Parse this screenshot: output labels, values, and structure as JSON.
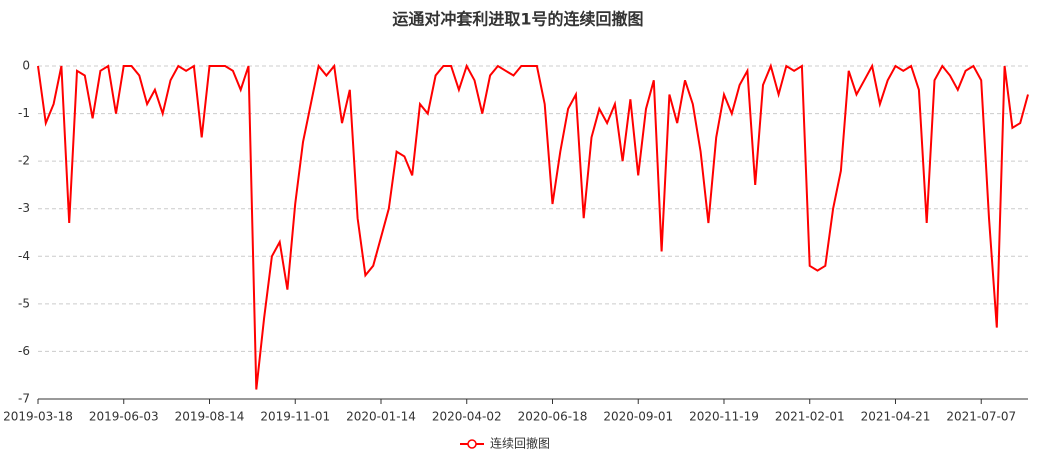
{
  "chart_data": {
    "type": "line",
    "title": "运通对冲套利进取1号的连续回撤图",
    "categories": [
      "2019-03-18",
      null,
      null,
      null,
      null,
      null,
      null,
      null,
      null,
      null,
      null,
      "2019-06-03",
      null,
      null,
      null,
      null,
      null,
      null,
      null,
      null,
      null,
      null,
      "2019-08-14",
      null,
      null,
      null,
      null,
      null,
      null,
      null,
      null,
      null,
      null,
      "2019-11-01",
      null,
      null,
      null,
      null,
      null,
      null,
      null,
      null,
      null,
      null,
      "2020-01-14",
      null,
      null,
      null,
      null,
      null,
      null,
      null,
      null,
      null,
      null,
      "2020-04-02",
      null,
      null,
      null,
      null,
      null,
      null,
      null,
      null,
      null,
      null,
      "2020-06-18",
      null,
      null,
      null,
      null,
      null,
      null,
      null,
      null,
      null,
      null,
      "2020-09-01",
      null,
      null,
      null,
      null,
      null,
      null,
      null,
      null,
      null,
      null,
      "2020-11-19",
      null,
      null,
      null,
      null,
      null,
      null,
      null,
      null,
      null,
      null,
      "2021-02-01",
      null,
      null,
      null,
      null,
      null,
      null,
      null,
      null,
      null,
      null,
      "2021-04-21",
      null,
      null,
      null,
      null,
      null,
      null,
      null,
      null,
      null,
      null,
      "2021-07-07",
      null,
      null,
      null,
      null,
      null,
      null
    ],
    "series": [
      {
        "name": "连续回撤图",
        "color": "#ff0000",
        "values": [
          0,
          -1.2,
          -0.8,
          0,
          -3.3,
          -0.1,
          -0.2,
          -1.1,
          -0.1,
          0,
          -1.0,
          0,
          0,
          -0.2,
          -0.8,
          -0.5,
          -1.0,
          -0.3,
          0,
          -0.1,
          0,
          -1.5,
          0,
          0,
          0,
          -0.1,
          -0.5,
          0,
          -6.8,
          -5.3,
          -4.0,
          -3.7,
          -4.7,
          -2.9,
          -1.6,
          -0.8,
          0,
          -0.2,
          0,
          -1.2,
          -0.5,
          -3.2,
          -4.4,
          -4.2,
          -3.6,
          -3.0,
          -1.8,
          -1.9,
          -2.3,
          -0.8,
          -1.0,
          -0.2,
          0,
          0,
          -0.5,
          0,
          -0.3,
          -1.0,
          -0.2,
          0,
          -0.1,
          -0.2,
          0,
          0,
          0,
          -0.8,
          -2.9,
          -1.8,
          -0.9,
          -0.6,
          -3.2,
          -1.5,
          -0.9,
          -1.2,
          -0.8,
          -2.0,
          -0.7,
          -2.3,
          -0.9,
          -0.3,
          -3.9,
          -0.6,
          -1.2,
          -0.3,
          -0.8,
          -1.8,
          -3.3,
          -1.5,
          -0.6,
          -1.0,
          -0.4,
          -0.1,
          -2.5,
          -0.4,
          0,
          -0.6,
          0,
          -0.1,
          0,
          -4.2,
          -4.3,
          -4.2,
          -3.0,
          -2.2,
          -0.1,
          -0.6,
          -0.3,
          0,
          -0.8,
          -0.3,
          0,
          -0.1,
          0,
          -0.5,
          -3.3,
          -0.3,
          0,
          -0.2,
          -0.5,
          -0.1,
          0,
          -0.3,
          -3.2,
          -5.5,
          0,
          -1.3,
          -1.2,
          -0.6
        ]
      }
    ],
    "ylim": [
      -7,
      0
    ],
    "yticks": [
      0,
      -1,
      -2,
      -3,
      -4,
      -5,
      -6,
      -7
    ],
    "grid": true
  }
}
